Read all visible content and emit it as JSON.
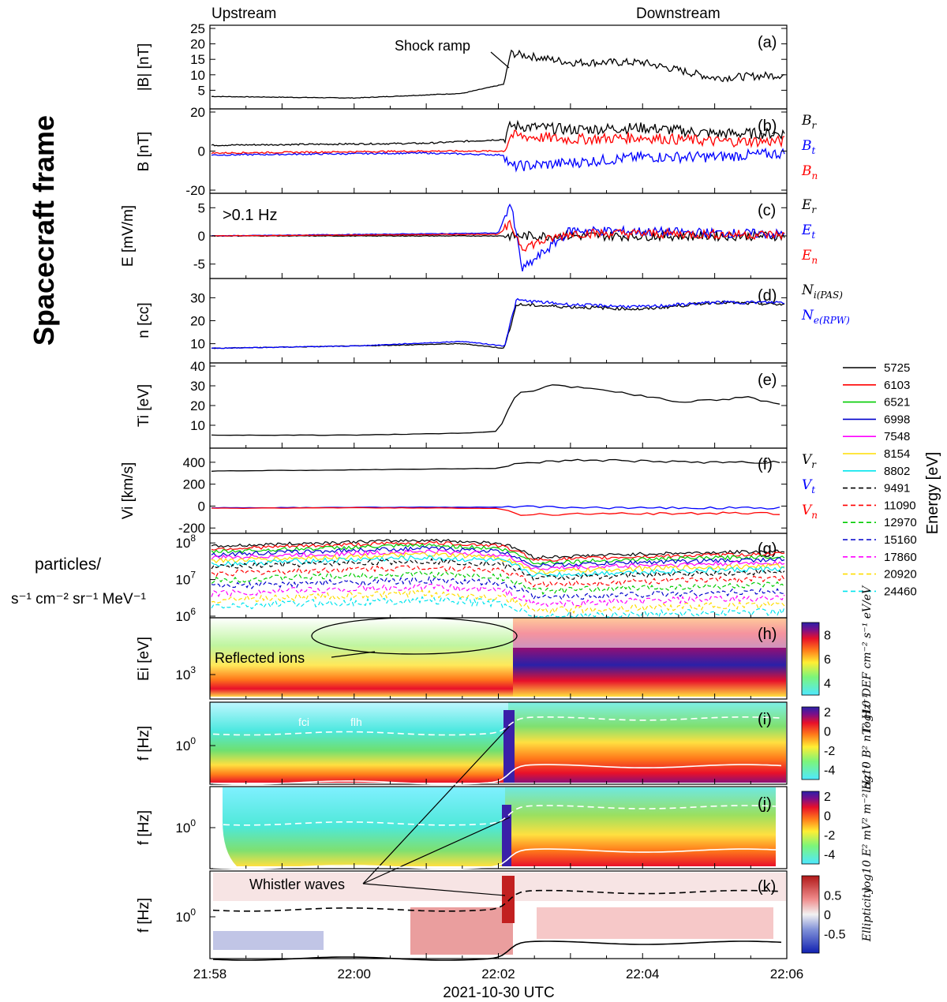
{
  "figure": {
    "frame_label": "Spacecraft frame",
    "upstream": "Upstream",
    "downstream": "Downstream",
    "shock_annotation": "Shock ramp",
    "reflected_annotation": "Reflected ions",
    "whistler_annotation": "Whistler waves",
    "filter_note": ">0.1 Hz",
    "fci_label": "fci",
    "flh_label": "flh",
    "xlabel": "2021-10-30 UTC",
    "xticks": [
      "21:58",
      "22:00",
      "22:02",
      "22:04",
      "22:06"
    ],
    "energy_axis_label": "Energy [eV]",
    "flux_units_line1": "particles/",
    "flux_units_line2": "s⁻¹ cm⁻² sr⁻¹ MeV⁻¹"
  },
  "chart_data": [
    {
      "panel": "(a)",
      "type": "line",
      "ylabel": "|B| [nT]",
      "yticks": [
        "5",
        "10",
        "15",
        "20",
        "25"
      ],
      "ylim": [
        0,
        25
      ],
      "x": [
        "21:58:00",
        "22:00:00",
        "22:01:30",
        "22:02:05",
        "22:02:10",
        "22:03:00",
        "22:04:00",
        "22:05:00",
        "22:06:00"
      ],
      "series": [
        {
          "name": "",
          "color": "#000000",
          "values": [
            3,
            2.5,
            4,
            7,
            17,
            14,
            14,
            9,
            10
          ]
        }
      ]
    },
    {
      "panel": "(b)",
      "type": "line",
      "ylabel": "B [nT]",
      "yticks": [
        "-20",
        "0",
        "20"
      ],
      "ylim": [
        -20,
        20
      ],
      "x": [
        "21:58:00",
        "22:01:00",
        "22:02:05",
        "22:02:10",
        "22:03:00",
        "22:04:00",
        "22:05:00",
        "22:06:00"
      ],
      "series": [
        {
          "name": "Br",
          "color": "#000000",
          "values": [
            3,
            4,
            6,
            13,
            11,
            12,
            9,
            9
          ]
        },
        {
          "name": "Bt",
          "color": "#0000ff",
          "values": [
            -2,
            -1,
            -2,
            -8,
            -6,
            -3,
            -3,
            -1
          ]
        },
        {
          "name": "Bn",
          "color": "#ff0000",
          "values": [
            -1,
            0,
            0,
            8,
            6,
            7,
            5,
            5
          ]
        }
      ]
    },
    {
      "panel": "(c)",
      "type": "line",
      "ylabel": "E [mV/m]",
      "yticks": [
        "-5",
        "0",
        "5"
      ],
      "ylim": [
        -7,
        7
      ],
      "x": [
        "21:58:00",
        "22:02:00",
        "22:02:10",
        "22:02:20",
        "22:03:00",
        "22:06:00"
      ],
      "series": [
        {
          "name": "Er",
          "color": "#000000",
          "values": [
            0,
            0,
            0,
            0,
            0,
            0
          ]
        },
        {
          "name": "Et",
          "color": "#0000ff",
          "values": [
            0,
            0.5,
            6,
            -6,
            1,
            0.3
          ]
        },
        {
          "name": "En",
          "color": "#ff0000",
          "values": [
            0,
            0.3,
            2,
            -2,
            0.5,
            0.2
          ]
        }
      ]
    },
    {
      "panel": "(d)",
      "type": "line",
      "ylabel": "n [cc]",
      "yticks": [
        "10",
        "20",
        "30"
      ],
      "ylim": [
        3,
        37
      ],
      "x": [
        "21:58:00",
        "22:00:00",
        "22:01:30",
        "22:02:05",
        "22:02:15",
        "22:03:00",
        "22:04:00",
        "22:05:00",
        "22:06:00"
      ],
      "series": [
        {
          "name": "Ni(PAS)",
          "color": "#000000",
          "values": [
            8,
            9,
            10,
            8,
            27,
            26,
            25,
            28,
            27
          ]
        },
        {
          "name": "Ne(RPW)",
          "color": "#0000ff",
          "values": [
            8,
            9,
            11,
            9,
            29,
            27,
            26,
            28,
            28
          ]
        }
      ]
    },
    {
      "panel": "(e)",
      "type": "line",
      "ylabel": "Ti [eV]",
      "yticks": [
        "10",
        "20",
        "30",
        "40"
      ],
      "ylim": [
        0,
        40
      ],
      "x": [
        "21:58:00",
        "22:00:00",
        "22:01:30",
        "22:02:00",
        "22:02:15",
        "22:02:45",
        "22:03:30",
        "22:04:30",
        "22:05:30",
        "22:06:00"
      ],
      "series": [
        {
          "name": "",
          "color": "#000000",
          "values": [
            5,
            5,
            6,
            7,
            26,
            30,
            28,
            22,
            24,
            20
          ]
        }
      ]
    },
    {
      "panel": "(f)",
      "type": "line",
      "ylabel": "Vi [km/s]",
      "yticks": [
        "-200",
        "0",
        "200",
        "400"
      ],
      "ylim": [
        -220,
        500
      ],
      "x": [
        "21:58:00",
        "22:00:00",
        "22:02:00",
        "22:02:20",
        "22:03:00",
        "22:04:00",
        "22:05:00",
        "22:06:00"
      ],
      "series": [
        {
          "name": "Vr",
          "color": "#000000",
          "values": [
            320,
            330,
            345,
            395,
            420,
            410,
            400,
            400
          ]
        },
        {
          "name": "Vt",
          "color": "#0000ff",
          "values": [
            -15,
            -12,
            -10,
            -5,
            -15,
            -15,
            -15,
            -20
          ]
        },
        {
          "name": "Vn",
          "color": "#ff0000",
          "values": [
            -20,
            -15,
            -20,
            -80,
            -70,
            -70,
            -65,
            -70
          ]
        }
      ]
    },
    {
      "panel": "(g)",
      "type": "line",
      "y_scale": "log",
      "ylim": [
        1000000,
        150000000
      ],
      "ytick_mantissa": "10",
      "ytick_exponents": [
        "8",
        "7",
        "6"
      ],
      "series_energies_ev": [
        5725,
        6103,
        6521,
        6998,
        7548,
        8154,
        8802,
        9491,
        11090,
        12970,
        15160,
        17860,
        20920,
        24460
      ],
      "legend_labels": [
        "5725",
        "6103",
        "6521",
        "6998",
        "7548",
        "8154",
        "8802",
        "9491",
        "11090",
        "12970",
        "15160",
        "17860",
        "20920",
        "24460"
      ],
      "colors": [
        "#000000",
        "#ff0000",
        "#00cc00",
        "#0000cc",
        "#ff00ff",
        "#ffdd00",
        "#00e5ee",
        "#000000",
        "#ff0000",
        "#00cc00",
        "#0000cc",
        "#ff00ff",
        "#ffdd00",
        "#00e5ee"
      ],
      "dashed_from_index": 7,
      "x": [
        "21:58:00",
        "22:01:00",
        "22:02:00",
        "22:02:30",
        "22:04:00",
        "22:06:00"
      ],
      "flux_5725": [
        80000000,
        120000000,
        100000000,
        40000000,
        50000000,
        60000000
      ]
    },
    {
      "panel": "(h)",
      "type": "heatmap",
      "ylabel": "Ei [eV]",
      "ytick_mantissa": "10",
      "ytick_exponent": "3",
      "colorbar_label": "log10 DEF cm⁻² s⁻¹ eV/eV",
      "colorbar_ticks": [
        "4",
        "6",
        "8"
      ]
    },
    {
      "panel": "(i)",
      "type": "heatmap",
      "ylabel": "f [Hz]",
      "ytick_mantissa": "10",
      "ytick_exponent": "0",
      "colorbar_label": "log10 B² nT² Hz⁻¹",
      "colorbar_ticks": [
        "2",
        "0",
        "-2",
        "-4"
      ]
    },
    {
      "panel": "(j)",
      "type": "heatmap",
      "ylabel": "f [Hz]",
      "ytick_mantissa": "10",
      "ytick_exponent": "0",
      "colorbar_label": "log10 E² mV² m⁻² Hz⁻¹",
      "colorbar_ticks": [
        "2",
        "0",
        "-2",
        "-4"
      ]
    },
    {
      "panel": "(k)",
      "type": "heatmap",
      "ylabel": "f [Hz]",
      "ytick_mantissa": "10",
      "ytick_exponent": "0",
      "colorbar_label": "Ellipticity",
      "colorbar_ticks": [
        "0.5",
        "0",
        "-0.5"
      ]
    }
  ]
}
